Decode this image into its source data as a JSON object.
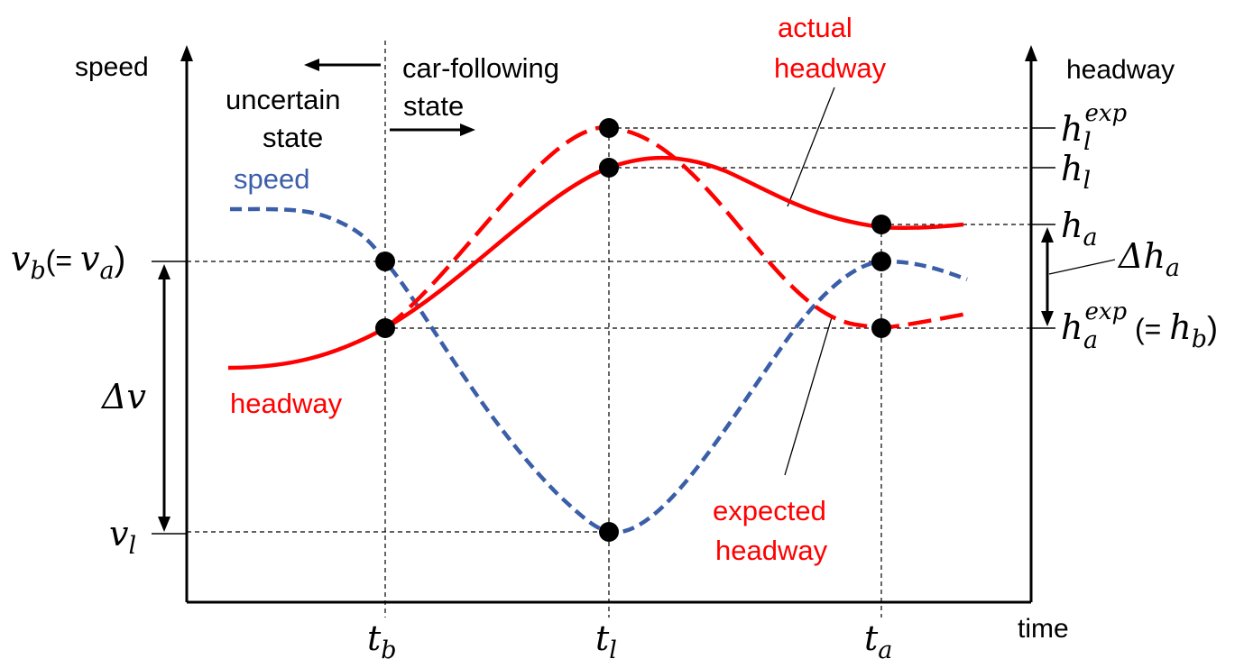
{
  "axes": {
    "left_label": "speed",
    "right_label": "headway",
    "x_label": "time"
  },
  "states": {
    "uncertain_line1": "uncertain",
    "uncertain_line2": "state",
    "car_following_line1": "car-following",
    "car_following_line2": "state"
  },
  "curve_labels": {
    "speed": "speed",
    "headway": "headway",
    "actual_line1": "actual",
    "actual_line2": "headway",
    "expected_line1": "expected",
    "expected_line2": "headway"
  },
  "ticks": {
    "t_b": {
      "base": "t",
      "sub": "b"
    },
    "t_l": {
      "base": "t",
      "sub": "l"
    },
    "t_a": {
      "base": "t",
      "sub": "a"
    }
  },
  "left_labels": {
    "v_b": {
      "base": "v",
      "sub": "b",
      "paren": "(= ",
      "base2": "v",
      "sub2": "a",
      "close": ")"
    },
    "delta_v": "Δv",
    "v_l": {
      "base": "v",
      "sub": "l"
    }
  },
  "right_labels": {
    "h_l_exp": {
      "base": "h",
      "sub": "l",
      "sup": "exp"
    },
    "h_l": {
      "base": "h",
      "sub": "l"
    },
    "h_a": {
      "base": "h",
      "sub": "a"
    },
    "delta_h_a": {
      "base": "Δh",
      "sub": "a"
    },
    "h_a_exp": {
      "base": "h",
      "sub": "a",
      "sup": "exp",
      "paren": "(= ",
      "base2": "h",
      "sub2": "b",
      "close": ")"
    }
  },
  "colors": {
    "speed": "#3a5ea8",
    "headway": "#ff0000",
    "axis": "#000000"
  }
}
